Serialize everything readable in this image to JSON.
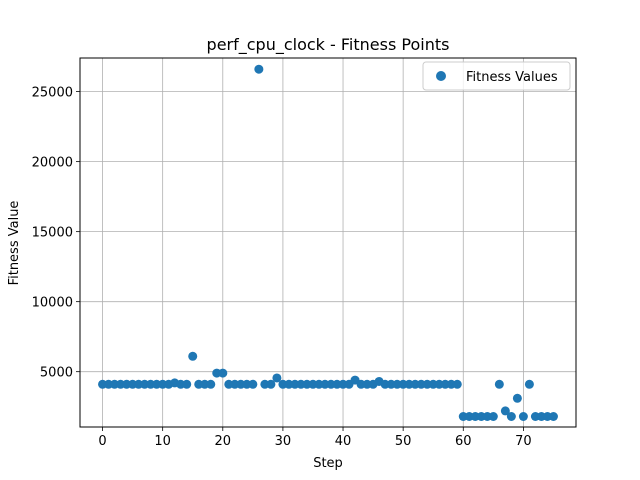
{
  "chart_data": {
    "type": "scatter",
    "title": "perf_cpu_clock - Fitness Points",
    "xlabel": "Step",
    "ylabel": "Fitness Value",
    "xlim": [
      -3.75,
      78.75
    ],
    "ylim": [
      1050,
      27400
    ],
    "xticks": [
      0,
      10,
      20,
      30,
      40,
      50,
      60,
      70
    ],
    "yticks": [
      5000,
      10000,
      15000,
      20000,
      25000
    ],
    "grid": true,
    "legend_position": "top-right",
    "series": [
      {
        "name": "Fitness Values",
        "color": "#1f77b4",
        "x": [
          0,
          1,
          2,
          3,
          4,
          5,
          6,
          7,
          8,
          9,
          10,
          11,
          12,
          13,
          14,
          15,
          16,
          17,
          18,
          19,
          20,
          21,
          22,
          23,
          24,
          25,
          26,
          27,
          28,
          29,
          30,
          31,
          32,
          33,
          34,
          35,
          36,
          37,
          38,
          39,
          40,
          41,
          42,
          43,
          44,
          45,
          46,
          47,
          48,
          49,
          50,
          51,
          52,
          53,
          54,
          55,
          56,
          57,
          58,
          59,
          60,
          61,
          62,
          63,
          64,
          65,
          66,
          67,
          68,
          69,
          70,
          71,
          72,
          73,
          74,
          75
        ],
        "y": [
          4100,
          4100,
          4100,
          4100,
          4100,
          4100,
          4100,
          4100,
          4100,
          4100,
          4100,
          4100,
          4200,
          4100,
          4100,
          6100,
          4100,
          4100,
          4100,
          4900,
          4900,
          4100,
          4100,
          4100,
          4100,
          4100,
          26600,
          4100,
          4100,
          4550,
          4100,
          4100,
          4100,
          4100,
          4100,
          4100,
          4100,
          4100,
          4100,
          4100,
          4100,
          4100,
          4400,
          4100,
          4100,
          4100,
          4300,
          4100,
          4100,
          4100,
          4100,
          4100,
          4100,
          4100,
          4100,
          4100,
          4100,
          4100,
          4100,
          4100,
          1800,
          1800,
          1800,
          1800,
          1800,
          1800,
          4100,
          2200,
          1800,
          3100,
          1800,
          4100,
          1800,
          1800,
          1800,
          1800
        ]
      }
    ]
  }
}
